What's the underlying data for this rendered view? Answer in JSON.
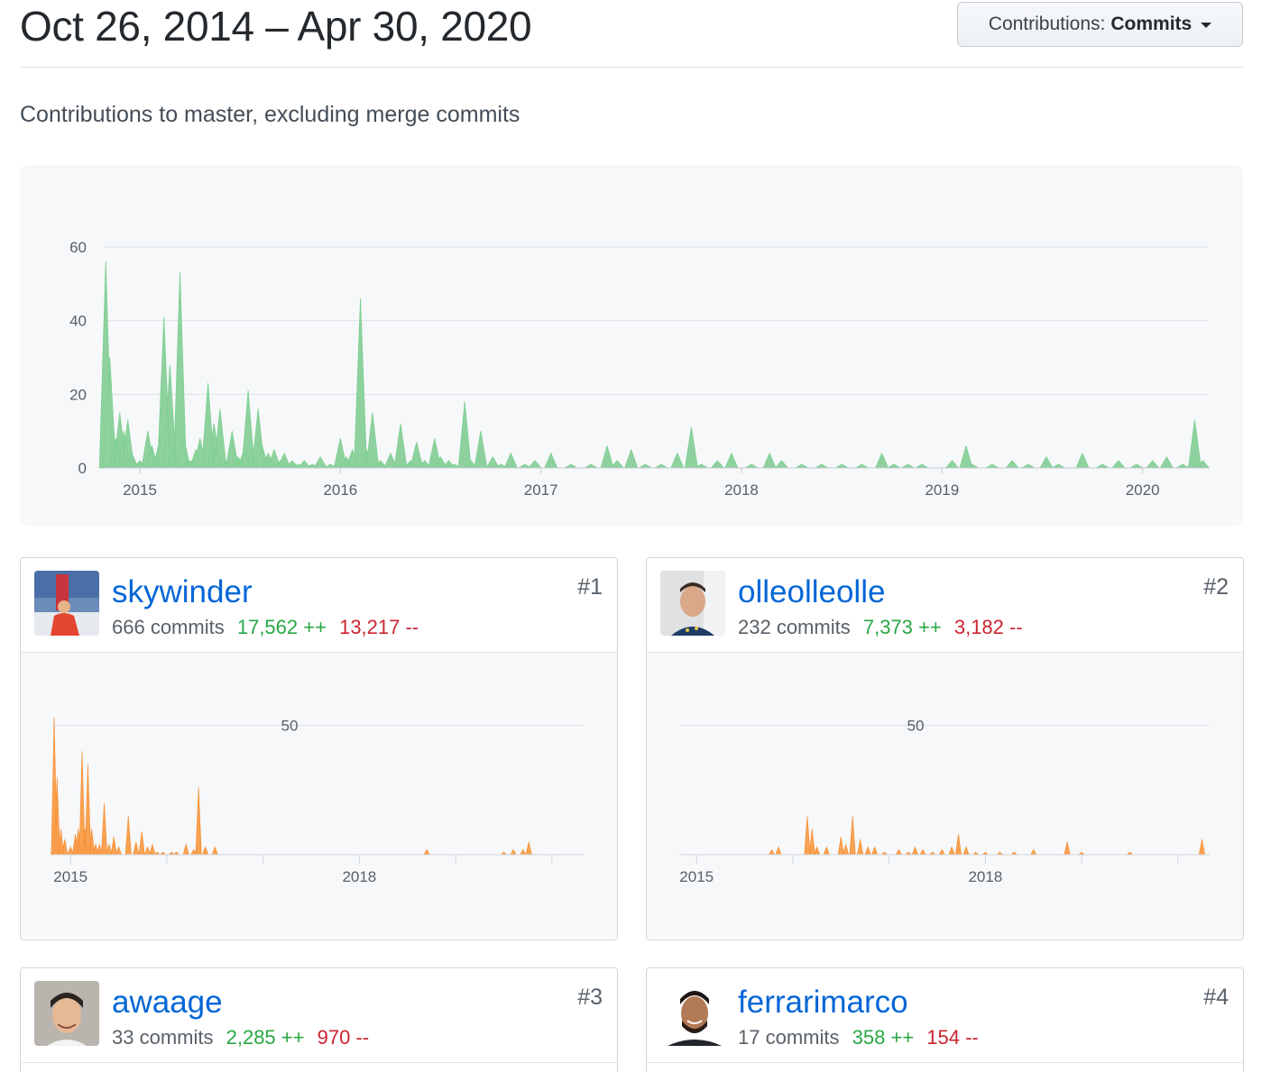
{
  "header": {
    "date_range": "Oct 26, 2014 – Apr 30, 2020",
    "contributions_label": "Contributions:",
    "contributions_value": "Commits"
  },
  "subtitle": "Contributions to master, excluding merge commits",
  "chart_data": [
    {
      "type": "area",
      "title": "",
      "xlabel": "",
      "ylabel": "",
      "ylim": [
        0,
        60
      ],
      "yticks": [
        "0",
        "20",
        "40",
        "60"
      ],
      "xticks": [
        "2015",
        "2016",
        "2017",
        "2018",
        "2019",
        "2020"
      ],
      "grid": true,
      "color": "#8fd19e",
      "series": [
        {
          "x": [
            2014.83,
            2014.85,
            2014.88,
            2014.9,
            2014.92,
            2014.94,
            2014.96,
            2015.0,
            2015.04,
            2015.06,
            2015.1,
            2015.12,
            2015.15,
            2015.17,
            2015.2,
            2015.22,
            2015.25,
            2015.28,
            2015.3,
            2015.34,
            2015.37,
            2015.38,
            2015.4,
            2015.43,
            2015.46,
            2015.49,
            2015.52,
            2015.54,
            2015.56,
            2015.59,
            2015.61,
            2015.64,
            2015.67,
            2015.7,
            2015.72,
            2015.76,
            2015.79,
            2015.82,
            2015.86,
            2015.9,
            2015.95,
            2016.0,
            2016.03,
            2016.06,
            2016.1,
            2016.13,
            2016.16,
            2016.2,
            2016.25,
            2016.3,
            2016.35,
            2016.38,
            2016.42,
            2016.47,
            2016.5,
            2016.54,
            2016.57,
            2016.62,
            2016.65,
            2016.7,
            2016.76,
            2016.8,
            2016.85,
            2016.92,
            2016.97,
            2017.05,
            2017.15,
            2017.25,
            2017.33,
            2017.38,
            2017.45,
            2017.52,
            2017.6,
            2017.68,
            2017.75,
            2017.8,
            2017.88,
            2017.95,
            2018.05,
            2018.14,
            2018.2,
            2018.3,
            2018.4,
            2018.5,
            2018.6,
            2018.7,
            2018.76,
            2018.83,
            2018.9,
            2019.05,
            2019.12,
            2019.15,
            2019.25,
            2019.35,
            2019.43,
            2019.52,
            2019.58,
            2019.7,
            2019.8,
            2019.88,
            2019.97,
            2020.05,
            2020.12,
            2020.2,
            2020.26,
            2020.3
          ],
          "y": [
            56,
            30,
            8,
            15,
            10,
            13,
            4,
            2,
            10,
            6,
            8,
            41,
            28,
            6,
            53,
            8,
            2,
            5,
            8,
            23,
            12,
            5,
            16,
            2,
            10,
            3,
            5,
            21,
            5,
            16,
            6,
            4,
            5,
            2,
            4,
            2,
            1,
            2,
            1,
            3,
            1,
            8,
            3,
            5,
            46,
            5,
            15,
            2,
            4,
            12,
            2,
            7,
            2,
            8,
            3,
            2,
            1,
            18,
            2,
            10,
            3,
            1,
            4,
            1,
            2,
            4,
            1,
            1,
            6,
            2,
            5,
            1,
            1,
            4,
            11,
            1,
            2,
            4,
            1,
            4,
            2,
            1,
            1,
            1,
            1,
            4,
            1,
            1,
            1,
            2,
            6,
            1,
            1,
            2,
            1,
            3,
            1,
            4,
            1,
            2,
            1,
            2,
            3,
            1,
            13,
            2
          ]
        }
      ]
    }
  ],
  "contributors": [
    {
      "username": "skywinder",
      "commits": "666 commits",
      "additions": "17,562 ++",
      "deletions": "13,217 --",
      "rank": "#1",
      "chart": {
        "type": "area",
        "color": "#f9a252",
        "ymax_label": "50",
        "ylim": [
          0,
          55
        ],
        "xticks": [
          "2015",
          "2018"
        ],
        "x": [
          2014.83,
          2014.86,
          2014.9,
          2014.94,
          2015.0,
          2015.05,
          2015.08,
          2015.12,
          2015.15,
          2015.18,
          2015.22,
          2015.26,
          2015.3,
          2015.35,
          2015.4,
          2015.45,
          2015.5,
          2015.6,
          2015.68,
          2015.74,
          2015.8,
          2015.85,
          2015.9,
          2015.96,
          2016.05,
          2016.1,
          2016.2,
          2016.28,
          2016.33,
          2016.4,
          2016.5,
          2018.7,
          2019.5,
          2019.6,
          2019.7,
          2019.76
        ],
        "y": [
          53,
          30,
          10,
          6,
          3,
          8,
          10,
          40,
          10,
          35,
          10,
          4,
          4,
          20,
          4,
          7,
          3,
          15,
          5,
          9,
          3,
          4,
          1,
          1,
          1,
          1,
          4,
          2,
          26,
          3,
          3,
          2,
          1,
          2,
          2,
          5
        ]
      },
      "avatar": "photo-skywinder"
    },
    {
      "username": "olleolleolle",
      "commits": "232 commits",
      "additions": "7,373 ++",
      "deletions": "3,182 --",
      "rank": "#2",
      "chart": {
        "type": "area",
        "color": "#f9a252",
        "ymax_label": "50",
        "ylim": [
          0,
          55
        ],
        "xticks": [
          "2015",
          "2018"
        ],
        "x": [
          2015.78,
          2015.85,
          2016.15,
          2016.2,
          2016.25,
          2016.35,
          2016.5,
          2016.55,
          2016.62,
          2016.7,
          2016.78,
          2016.85,
          2016.95,
          2017.1,
          2017.2,
          2017.27,
          2017.35,
          2017.45,
          2017.55,
          2017.65,
          2017.72,
          2017.8,
          2017.9,
          2018.0,
          2018.15,
          2018.3,
          2018.5,
          2018.85,
          2019.0,
          2019.5,
          2020.25
        ],
        "y": [
          2,
          3,
          15,
          10,
          3,
          3,
          7,
          4,
          15,
          6,
          3,
          3,
          1,
          2,
          1,
          3,
          2,
          1,
          2,
          3,
          8,
          3,
          1,
          1,
          1,
          1,
          2,
          5,
          1,
          1,
          6
        ]
      },
      "avatar": "photo-olleolleolle"
    },
    {
      "username": "awaage",
      "commits": "33 commits",
      "additions": "2,285 ++",
      "deletions": "970 --",
      "rank": "#3",
      "avatar": "photo-awaage"
    },
    {
      "username": "ferrarimarco",
      "commits": "17 commits",
      "additions": "358 ++",
      "deletions": "154 --",
      "rank": "#4",
      "avatar": "photo-ferrarimarco"
    }
  ]
}
